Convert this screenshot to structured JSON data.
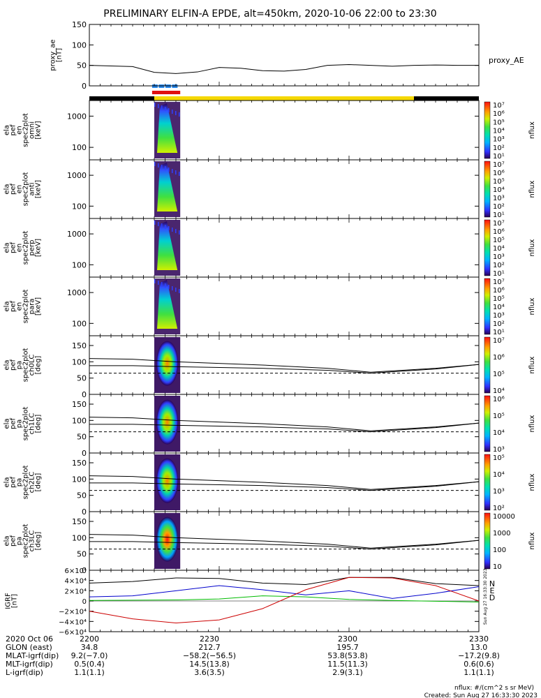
{
  "title": "PRELIMINARY ELFIN-A EPDE, alt=450km, 2020-10-06 22:00 to 23:30",
  "panels": [
    {
      "ylabel": [
        "proxy_ae",
        "[nT]"
      ],
      "ticks": [
        "150",
        "100",
        "50",
        "0"
      ],
      "right_label": "proxy_AE"
    },
    {
      "ylabel": [
        "ela",
        "pef",
        "en",
        "spec2plot",
        "omni",
        "[keV]"
      ],
      "ticks": [
        "1000",
        "100"
      ],
      "cb_ticks": [
        "10⁷",
        "10⁶",
        "10⁵",
        "10⁴",
        "10³",
        "10²",
        "10¹"
      ],
      "cb_label": "nflux"
    },
    {
      "ylabel": [
        "ela",
        "pef",
        "en",
        "spec2plot",
        "anti",
        "[keV]"
      ],
      "ticks": [
        "1000",
        "100"
      ],
      "cb_ticks": [
        "10⁷",
        "10⁶",
        "10⁵",
        "10⁴",
        "10³",
        "10²",
        "10¹"
      ],
      "cb_label": "nflux"
    },
    {
      "ylabel": [
        "ela",
        "pef",
        "en",
        "spec2plot",
        "perp",
        "[keV]"
      ],
      "ticks": [
        "1000",
        "100"
      ],
      "cb_ticks": [
        "10⁷",
        "10⁶",
        "10⁵",
        "10⁴",
        "10³",
        "10²",
        "10¹"
      ],
      "cb_label": "nflux"
    },
    {
      "ylabel": [
        "ela",
        "pef",
        "en",
        "spec2plot",
        "para",
        "[keV]"
      ],
      "ticks": [
        "1000",
        "100"
      ],
      "cb_ticks": [
        "10⁷",
        "10⁶",
        "10⁵",
        "10⁴",
        "10³",
        "10²",
        "10¹"
      ],
      "cb_label": "nflux"
    },
    {
      "ylabel": [
        "ela",
        "pef",
        "pa",
        "spec2plot",
        "ch0LC",
        "[deg]"
      ],
      "ticks": [
        "150",
        "100",
        "50",
        "0"
      ],
      "cb_ticks": [
        "10⁷",
        "10⁶",
        "10⁵",
        "10⁴"
      ],
      "cb_label": "nflux"
    },
    {
      "ylabel": [
        "ela",
        "pef",
        "pa",
        "spec2plot",
        "ch1LC",
        "[deg]"
      ],
      "ticks": [
        "150",
        "100",
        "50",
        "0"
      ],
      "cb_ticks": [
        "10⁶",
        "10⁵",
        "10⁴",
        "10³"
      ],
      "cb_label": "nflux"
    },
    {
      "ylabel": [
        "ela",
        "pef",
        "pa",
        "spec2plot",
        "ch2LC",
        "[deg]"
      ],
      "ticks": [
        "150",
        "100",
        "50",
        "0"
      ],
      "cb_ticks": [
        "10⁵",
        "10⁴",
        "10³",
        "10²"
      ],
      "cb_label": "nflux"
    },
    {
      "ylabel": [
        "ela",
        "pef",
        "pa",
        "spec2plot",
        "ch3LC",
        "[deg]"
      ],
      "ticks": [
        "150",
        "100",
        "50",
        "0"
      ],
      "cb_ticks": [
        "10000",
        "1000",
        "100",
        "10"
      ],
      "cb_label": "nflux"
    },
    {
      "ylabel": [
        "IGRF",
        "[nT]"
      ],
      "ticks": [
        "6×10⁴",
        "4×10⁴",
        "2×10⁴",
        "0",
        "−2×10⁴",
        "−4×10⁴",
        "−6×10⁴"
      ],
      "legend": [
        "N",
        "E",
        "D"
      ]
    }
  ],
  "footer": {
    "rows": [
      [
        "2020 Oct 06",
        "2200",
        "2230",
        "2300",
        "2330"
      ],
      [
        "GLON (east)",
        "34.8",
        "212.7",
        "195.7",
        "13.0"
      ],
      [
        "MLAT-igrf(dip)",
        "9.2(−7.0)",
        "−58.2(−56.5)",
        "53.8(53.8)",
        "−17.2(9.8)"
      ],
      [
        "MLT-igrf(dip)",
        "0.5(0.4)",
        "14.5(13.8)",
        "11.5(11.3)",
        "0.6(0.6)"
      ],
      [
        "L-igrf(dip)",
        "1.1(1.1)",
        "3.6(3.5)",
        "2.9(3.1)",
        "1.1(1.1)"
      ]
    ],
    "units": "nflux: #/(cm^2 s sr MeV)",
    "created": "Created: Sun Aug 27 16:33:30 2023",
    "side_stamp": "Sun Aug 27 16:33:30 2023"
  },
  "colors": {
    "yellow_bar": "#f5d800",
    "blue_flag": "#2a8cf0",
    "red_flag": "#e01010",
    "igrf_N": "#0000cc",
    "igrf_E": "#00bb00",
    "igrf_D": "#cc0000"
  },
  "chart_data": {
    "type": "line",
    "time_range": [
      "2020-10-06 22:00",
      "2020-10-06 23:30"
    ],
    "x_ticks": [
      "2200",
      "2230",
      "2300",
      "2330"
    ],
    "proxy_ae": {
      "t_min": [
        0,
        10,
        15,
        20,
        25,
        30,
        35,
        40,
        45,
        50,
        55,
        60,
        65,
        70,
        75,
        80,
        85,
        90
      ],
      "values": [
        50,
        47,
        33,
        30,
        34,
        45,
        43,
        37,
        36,
        40,
        50,
        52,
        50,
        48,
        50,
        51,
        50,
        50
      ],
      "ylim": [
        0,
        150
      ]
    },
    "pa_lines_deg": {
      "solid_top": [
        110,
        108,
        100,
        90,
        80,
        68,
        80,
        92
      ],
      "solid_bottom": [
        88,
        88,
        85,
        80,
        74,
        65,
        78,
        92
      ],
      "dashed": 65,
      "t_min": [
        0,
        10,
        20,
        40,
        55,
        65,
        80,
        90
      ]
    },
    "igrf": {
      "t_min": [
        0,
        10,
        20,
        30,
        40,
        50,
        60,
        70,
        80,
        90
      ],
      "N": [
        8000,
        10000,
        20000,
        30000,
        22000,
        12000,
        20000,
        5000,
        15000,
        28000
      ],
      "E": [
        1000,
        1500,
        2000,
        4000,
        10000,
        8000,
        3000,
        1000,
        -500,
        -2000
      ],
      "D": [
        -20000,
        -35000,
        -43000,
        -37000,
        -15000,
        22000,
        46000,
        45000,
        30000,
        0
      ],
      "total": [
        35000,
        38000,
        45000,
        44000,
        35000,
        32000,
        46000,
        46000,
        34000,
        30000
      ],
      "ylim": [
        -60000,
        60000
      ]
    },
    "spectrogram_time_min": [
      15,
      21
    ]
  }
}
